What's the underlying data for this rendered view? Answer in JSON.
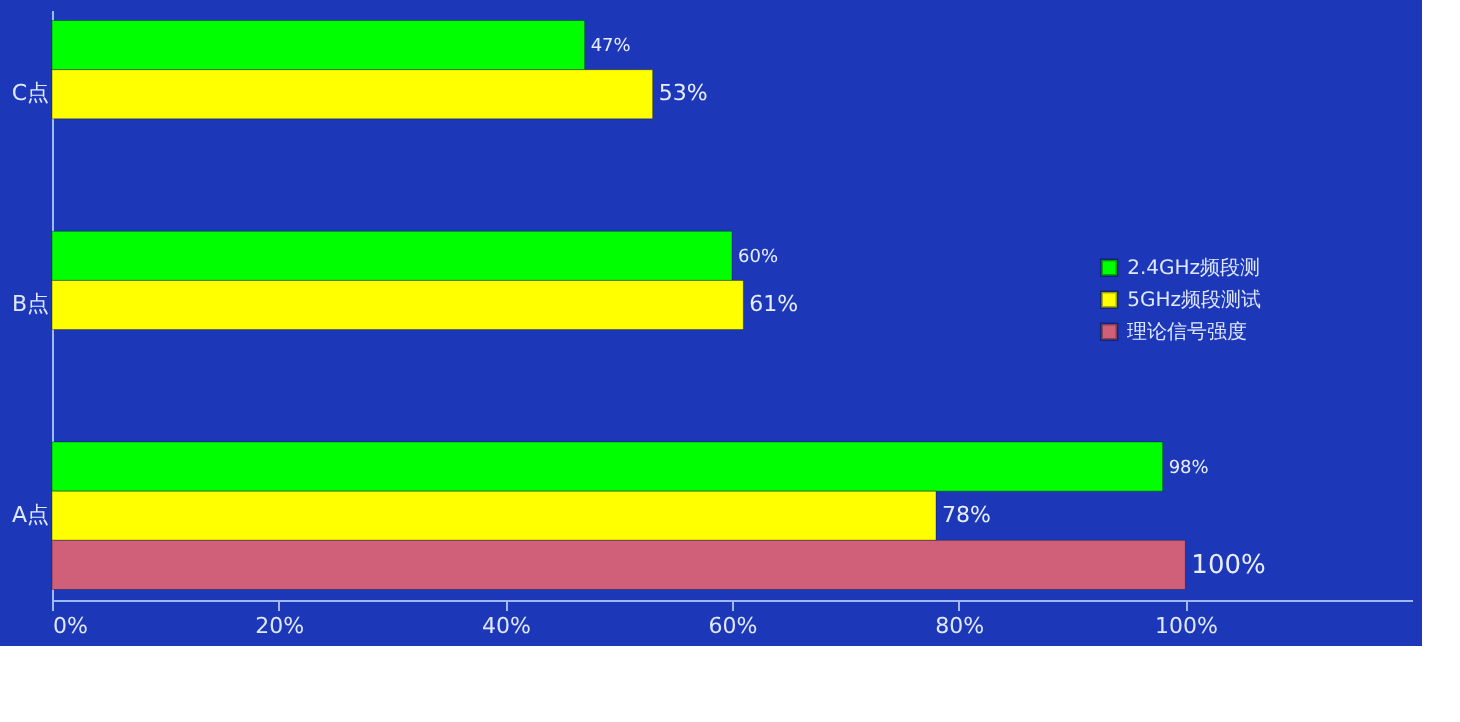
{
  "chart_data": {
    "type": "bar",
    "orientation": "horizontal",
    "categories": [
      "C点",
      "B点",
      "A点"
    ],
    "series": [
      {
        "name": "2.4GHz频段测",
        "color": "#00ff00",
        "values": [
          47,
          60,
          98
        ],
        "value_labels": [
          "47%",
          "60%",
          "98%"
        ]
      },
      {
        "name": "5GHz频段测试",
        "color": "#ffff00",
        "values": [
          53,
          61,
          78
        ],
        "value_labels": [
          "53%",
          "61%",
          "78%"
        ]
      },
      {
        "name": "理论信号强度",
        "color": "#d0607a",
        "values": [
          null,
          null,
          100
        ],
        "value_labels": [
          null,
          null,
          "100%"
        ]
      }
    ],
    "xlim": [
      0,
      120
    ],
    "xticks": [
      {
        "value": 0,
        "label": "0%"
      },
      {
        "value": 20,
        "label": "20%"
      },
      {
        "value": 40,
        "label": "40%"
      },
      {
        "value": 60,
        "label": "60%"
      },
      {
        "value": 80,
        "label": "80%"
      },
      {
        "value": 100,
        "label": "100%"
      }
    ],
    "grid": false,
    "legend": "right"
  }
}
